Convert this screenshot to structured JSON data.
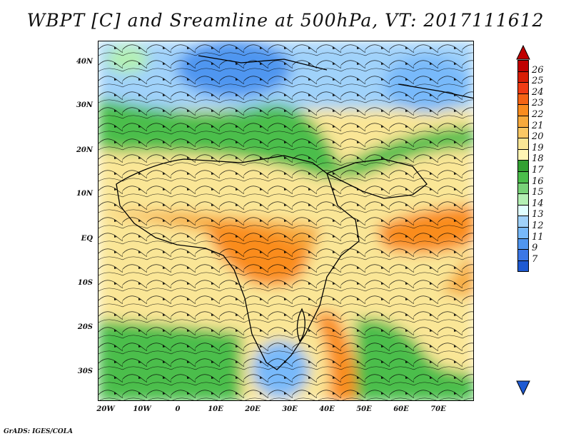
{
  "title": "WBPT [C] and Sreamline at 500hPa, VT: 2017111612",
  "lat_labels": [
    "40N",
    "30N",
    "20N",
    "10N",
    "EQ",
    "10S",
    "20S",
    "30S"
  ],
  "lon_labels": [
    "20W",
    "10W",
    "0",
    "10E",
    "20E",
    "30E",
    "40E",
    "50E",
    "60E",
    "70E"
  ],
  "colorbar": {
    "labels": [
      "26",
      "25",
      "24",
      "23",
      "22",
      "21",
      "20",
      "19",
      "18",
      "17",
      "16",
      "15",
      "14",
      "13",
      "12",
      "11",
      "9",
      "7"
    ],
    "colors": [
      "#c00000",
      "#d81e05",
      "#f03c14",
      "#f56414",
      "#fa8c1e",
      "#f7aa3c",
      "#fac864",
      "#fae696",
      "#fff5b4",
      "#32a032",
      "#4bbe4b",
      "#78d278",
      "#b4f0b4",
      "#e1ffff",
      "#a0d2fa",
      "#78b9fa",
      "#5096f0",
      "#3c78e6",
      "#1e5ad2"
    ]
  },
  "credit": "GrADS: IGES/COLA"
}
